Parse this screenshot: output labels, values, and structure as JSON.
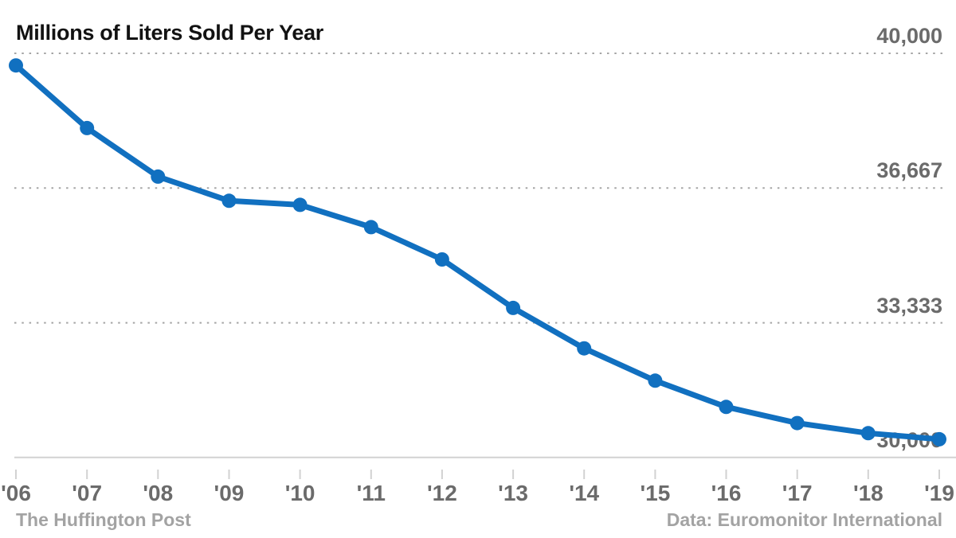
{
  "page": {
    "title": "Millions of Liters Sold Per Year",
    "footer_left": "The Huffington Post",
    "footer_right": "Data: Euromonitor International"
  },
  "colors": {
    "line": "#1170c0",
    "point": "#1170c0",
    "title_text": "#121212",
    "tick_label": "#6b6b6b",
    "footer_text": "#a3a3a3",
    "gridline": "#a5a5a5",
    "axis_line": "#d2d2d2"
  },
  "chart_data": {
    "type": "line",
    "title": "Millions of Liters Sold Per Year",
    "x_labels": [
      "'06",
      "'07",
      "'08",
      "'09",
      "'10",
      "'11",
      "'12",
      "'13",
      "'14",
      "'15",
      "'16",
      "'17",
      "'18",
      "'19"
    ],
    "years": [
      2006,
      2007,
      2008,
      2009,
      2010,
      2011,
      2012,
      2013,
      2014,
      2015,
      2016,
      2017,
      2018,
      2019
    ],
    "series": [
      {
        "name": "Millions of liters sold per year",
        "values": [
          39700,
          38150,
          36950,
          36350,
          36250,
          35700,
          34900,
          33700,
          32700,
          31900,
          31250,
          30850,
          30600,
          30450
        ]
      }
    ],
    "ylim": [
      30000,
      40000
    ],
    "yticks": [
      40000,
      36667,
      33333,
      30000
    ],
    "ytick_labels": [
      "40,000",
      "36,667",
      "33,333",
      "30,000"
    ],
    "grid": "horizontal dotted gridlines, solid bottom axis",
    "legend": "none",
    "source_left": "The Huffington Post",
    "source_right": "Data: Euromonitor International"
  }
}
